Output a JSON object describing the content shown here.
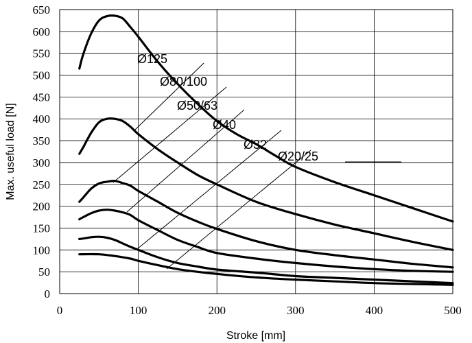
{
  "chart_data": {
    "type": "line",
    "title": "",
    "xlabel": "Stroke [mm]",
    "ylabel": "Max. useful load [N]",
    "xlim": [
      0,
      500
    ],
    "ylim": [
      0,
      650
    ],
    "x_ticks": [
      "0",
      "100",
      "200",
      "300",
      "400",
      "500"
    ],
    "y_ticks": [
      "0",
      "50",
      "100",
      "150",
      "200",
      "250",
      "300",
      "350",
      "400",
      "450",
      "500",
      "550",
      "600",
      "650"
    ],
    "grid": true,
    "legend": "none",
    "series": [
      {
        "name": "Ø125",
        "x": [
          25,
          30,
          40,
          50,
          60,
          70,
          80,
          90,
          100,
          125,
          150,
          175,
          200,
          225,
          250,
          275,
          300,
          350,
          400,
          450,
          500
        ],
        "values": [
          515,
          548,
          595,
          625,
          635,
          636,
          630,
          610,
          588,
          530,
          480,
          435,
          395,
          365,
          342,
          315,
          290,
          255,
          225,
          195,
          165
        ]
      },
      {
        "name": "Ø80/100",
        "x": [
          25,
          30,
          40,
          50,
          60,
          70,
          80,
          90,
          100,
          125,
          150,
          175,
          200,
          250,
          300,
          350,
          400,
          450,
          500
        ],
        "values": [
          320,
          335,
          368,
          392,
          400,
          400,
          395,
          382,
          365,
          330,
          300,
          272,
          250,
          210,
          182,
          158,
          138,
          118,
          100
        ]
      },
      {
        "name": "Ø50/63",
        "x": [
          25,
          30,
          40,
          50,
          60,
          70,
          80,
          90,
          100,
          125,
          150,
          175,
          200,
          250,
          300,
          350,
          400,
          450,
          500
        ],
        "values": [
          210,
          220,
          240,
          252,
          256,
          258,
          253,
          247,
          235,
          210,
          185,
          165,
          148,
          120,
          100,
          88,
          78,
          68,
          60
        ]
      },
      {
        "name": "Ø40",
        "x": [
          25,
          30,
          40,
          50,
          60,
          70,
          80,
          90,
          100,
          125,
          150,
          175,
          200,
          250,
          300,
          350,
          400,
          450,
          500
        ],
        "values": [
          170,
          175,
          184,
          190,
          192,
          190,
          186,
          180,
          168,
          145,
          123,
          107,
          93,
          80,
          70,
          62,
          56,
          52,
          50
        ]
      },
      {
        "name": "Ø32",
        "x": [
          25,
          30,
          40,
          50,
          60,
          70,
          80,
          90,
          100,
          125,
          150,
          175,
          200,
          250,
          300,
          350,
          400,
          450,
          500
        ],
        "values": [
          125,
          126,
          129,
          130,
          128,
          123,
          115,
          107,
          100,
          83,
          70,
          62,
          55,
          48,
          40,
          36,
          32,
          28,
          24
        ]
      },
      {
        "name": "Ø20/25",
        "x": [
          25,
          50,
          70,
          90,
          100,
          125,
          150,
          175,
          200,
          250,
          300,
          350,
          400,
          450,
          500
        ],
        "values": [
          90,
          90,
          86,
          80,
          75,
          65,
          56,
          50,
          45,
          37,
          32,
          28,
          24,
          22,
          20
        ]
      }
    ]
  }
}
